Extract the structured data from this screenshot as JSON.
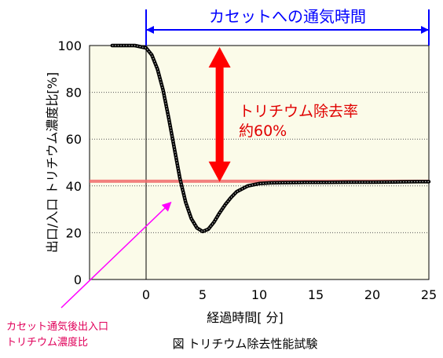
{
  "chart_data": {
    "type": "line",
    "title": "図 トリチウム除去性能試験",
    "xlabel": "経過時間[ 分]",
    "ylabel": "出口/入口 トリチウム濃度比[%]",
    "xlim": [
      -5,
      25
    ],
    "ylim": [
      0,
      100
    ],
    "x_ticks": [
      "0",
      "5",
      "10",
      "15",
      "20",
      "25"
    ],
    "y_ticks": [
      "0",
      "20",
      "40",
      "60",
      "80",
      "100"
    ],
    "grid": "horizontal-dotted",
    "series": [
      {
        "x": [
          -3,
          -1,
          0,
          0.5,
          1,
          1.5,
          2,
          2.5,
          3,
          3.5,
          4,
          4.5,
          5,
          5.5,
          6,
          6.5,
          7,
          7.5,
          8,
          9,
          10,
          11,
          12,
          14,
          16,
          18,
          20,
          22,
          24,
          25
        ],
        "y": [
          100,
          100,
          99,
          96,
          90,
          81,
          69,
          56,
          43,
          33,
          26,
          22,
          20.5,
          21.5,
          24.5,
          28.5,
          32,
          35,
          37.5,
          40,
          41,
          41.3,
          41.4,
          41.5,
          41.5,
          41.6,
          41.6,
          41.7,
          41.8,
          41.8
        ],
        "color": "#000000"
      }
    ],
    "reference_line": {
      "y": 42,
      "color": "#f06a6a"
    },
    "annotations": {
      "exposure_label": "カセットへの通気時間",
      "exposure_range": [
        0,
        25
      ],
      "exposure_color": "#0000ff",
      "removal_label_line1": "トリチウム除去率",
      "removal_label_line2": "約60%",
      "removal_color": "#e00000",
      "removal_from": 100,
      "removal_to": 41,
      "removal_x": 6.5,
      "curve_label_line1": "カセット通気後出入口",
      "curve_label_line2": "トリチウム濃度比",
      "curve_label_color": "#e0005a",
      "curve_arrow_color": "#ff00ff",
      "curve_pointer": [
        2.2,
        33
      ]
    },
    "plot_background": "#fbfbe9"
  }
}
